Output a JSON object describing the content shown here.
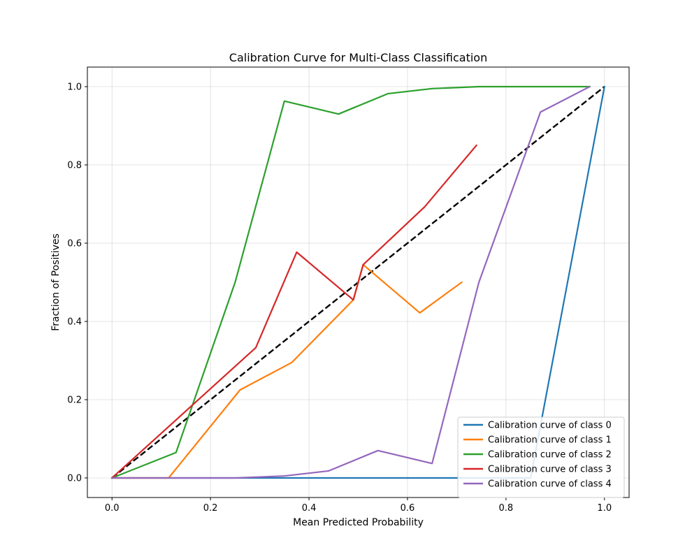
{
  "chart_data": {
    "type": "line",
    "title": "Calibration Curve for Multi-Class Classification",
    "xlabel": "Mean Predicted Probability",
    "ylabel": "Fraction of Positives",
    "xlim": [
      -0.05,
      1.05
    ],
    "ylim": [
      -0.05,
      1.05
    ],
    "xticks": [
      0.0,
      0.2,
      0.4,
      0.6,
      0.8,
      1.0
    ],
    "yticks": [
      0.0,
      0.2,
      0.4,
      0.6,
      0.8,
      1.0
    ],
    "xtick_labels": [
      "0.0",
      "0.2",
      "0.4",
      "0.6",
      "0.8",
      "1.0"
    ],
    "ytick_labels": [
      "0.0",
      "0.2",
      "0.4",
      "0.6",
      "0.8",
      "1.0"
    ],
    "grid": true,
    "legend_position": "lower-right",
    "series": [
      {
        "name": "Calibration curve of class 0",
        "color": "#1f77b4",
        "x": [
          0.0,
          0.85,
          1.0
        ],
        "y": [
          0.0,
          0.0,
          1.0
        ]
      },
      {
        "name": "Calibration curve of class 1",
        "color": "#ff7f0e",
        "x": [
          0.0,
          0.115,
          0.26,
          0.365,
          0.49,
          0.51,
          0.625,
          0.71
        ],
        "y": [
          0.0,
          0.0,
          0.225,
          0.295,
          0.455,
          0.545,
          0.422,
          0.5
        ]
      },
      {
        "name": "Calibration curve of class 2",
        "color": "#2ca02c",
        "x": [
          0.0,
          0.13,
          0.25,
          0.35,
          0.46,
          0.56,
          0.65,
          0.745,
          0.97
        ],
        "y": [
          0.0,
          0.065,
          0.5,
          0.963,
          0.93,
          0.982,
          0.995,
          1.0,
          1.0
        ]
      },
      {
        "name": "Calibration curve of class 3",
        "color": "#d62728",
        "x": [
          0.0,
          0.292,
          0.375,
          0.49,
          0.51,
          0.635,
          0.74
        ],
        "y": [
          0.0,
          0.333,
          0.577,
          0.455,
          0.545,
          0.693,
          0.85
        ]
      },
      {
        "name": "Calibration curve of class 4",
        "color": "#9467bd",
        "x": [
          0.0,
          0.25,
          0.35,
          0.44,
          0.54,
          0.65,
          0.745,
          0.87,
          0.97
        ],
        "y": [
          0.0,
          0.0,
          0.005,
          0.018,
          0.07,
          0.037,
          0.5,
          0.935,
          1.0
        ]
      }
    ],
    "reference_line": {
      "x": [
        0.0,
        1.0
      ],
      "y": [
        0.0,
        1.0
      ],
      "color": "#000000",
      "style": "dashed"
    }
  }
}
